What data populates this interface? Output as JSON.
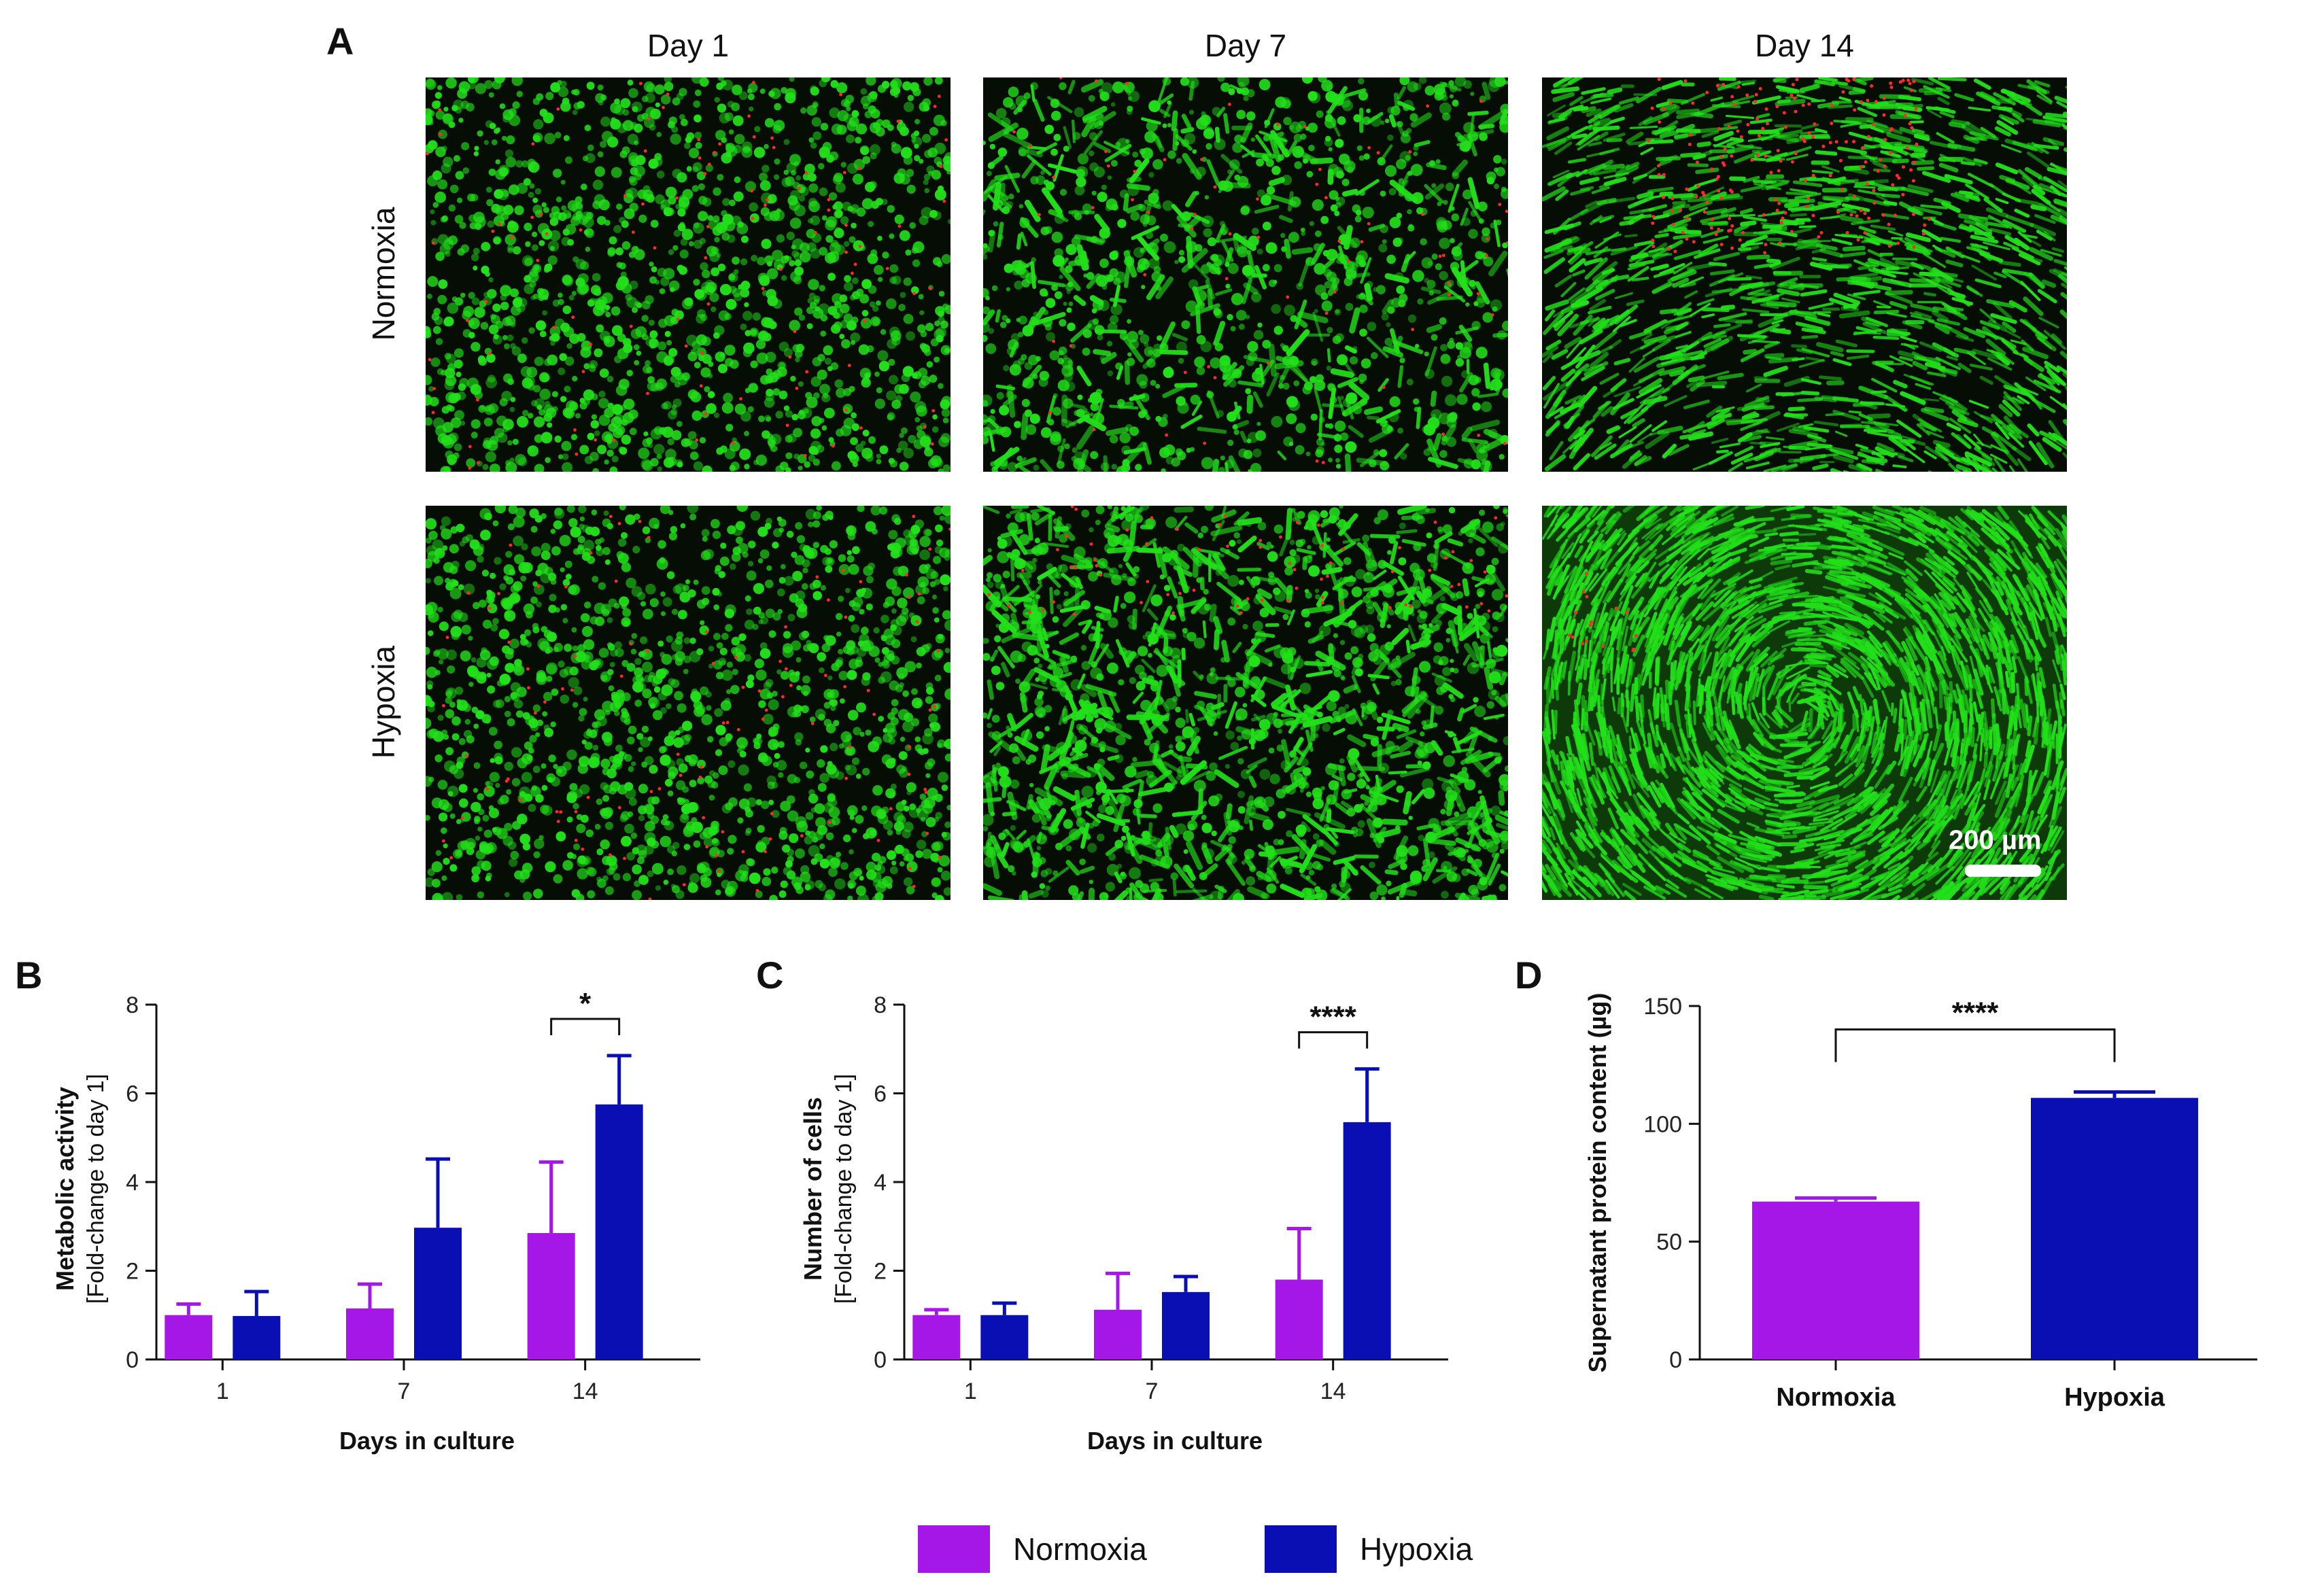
{
  "panels": {
    "a": "A",
    "b": "B",
    "c": "C",
    "d": "D"
  },
  "columns": [
    "Day 1",
    "Day 7",
    "Day 14"
  ],
  "rows": [
    "Normoxia",
    "Hypoxia"
  ],
  "scalebar_label": "200 µm",
  "colors": {
    "normoxia": "#a417e6",
    "hypoxia": "#0a0fb3",
    "live_stain": "#22e01a",
    "dead_stain": "#ff2a2a"
  },
  "legend": [
    {
      "label": "Normoxia",
      "color": "#a417e6"
    },
    {
      "label": "Hypoxia",
      "color": "#0a0fb3"
    }
  ],
  "chart_data": [
    {
      "panel": "B",
      "type": "bar",
      "categories": [
        "1",
        "7",
        "14"
      ],
      "series": [
        {
          "name": "Normoxia",
          "values": [
            1.0,
            1.15,
            2.85
          ],
          "errors": [
            0.25,
            0.55,
            1.6
          ]
        },
        {
          "name": "Hypoxia",
          "values": [
            0.98,
            2.97,
            5.75
          ],
          "errors": [
            0.55,
            1.55,
            1.1
          ]
        }
      ],
      "xlabel": "Days in culture",
      "ylabel": "Metabolic activity",
      "ylabel2": "[Fold-change to day 1]",
      "ylim": [
        0,
        8
      ],
      "yticks": [
        "0",
        "2",
        "4",
        "6",
        "8"
      ],
      "significance": [
        {
          "category": "14",
          "label": "*"
        }
      ]
    },
    {
      "panel": "C",
      "type": "bar",
      "categories": [
        "1",
        "7",
        "14"
      ],
      "series": [
        {
          "name": "Normoxia",
          "values": [
            1.0,
            1.12,
            1.8
          ],
          "errors": [
            0.12,
            0.82,
            1.15
          ]
        },
        {
          "name": "Hypoxia",
          "values": [
            1.0,
            1.52,
            5.35
          ],
          "errors": [
            0.27,
            0.35,
            1.2
          ]
        }
      ],
      "xlabel": "Days in culture",
      "ylabel": "Number of cells",
      "ylabel2": "[Fold-change to day 1]",
      "ylim": [
        0,
        8
      ],
      "yticks": [
        "0",
        "2",
        "4",
        "6",
        "8"
      ],
      "significance": [
        {
          "category": "14",
          "label": "****"
        }
      ]
    },
    {
      "panel": "D",
      "type": "bar",
      "categories": [
        "Normoxia",
        "Hypoxia"
      ],
      "values": [
        67,
        111
      ],
      "errors": [
        1.5,
        2.5
      ],
      "xlabel": "",
      "ylabel": "Supernatant protein content (µg)",
      "ylim": [
        0,
        150
      ],
      "yticks": [
        "0",
        "50",
        "100",
        "150"
      ],
      "significance": [
        {
          "between": [
            "Normoxia",
            "Hypoxia"
          ],
          "label": "****"
        }
      ]
    }
  ]
}
